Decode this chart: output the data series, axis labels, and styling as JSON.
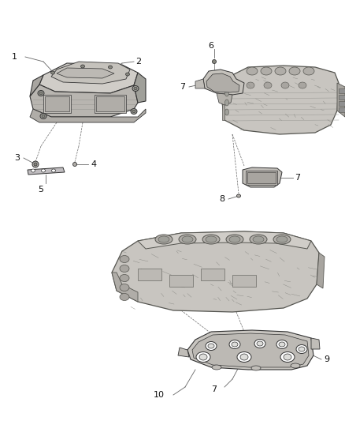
{
  "bg_color": "#ffffff",
  "fig_width": 4.38,
  "fig_height": 5.33,
  "dpi": 100,
  "line_color": "#444444",
  "text_color": "#111111",
  "font_size": 7.5,
  "part_fill": "#d8d5d0",
  "part_dark": "#b0ada8",
  "part_darker": "#909090",
  "part_edge": "#333333",
  "leader_color": "#666666",
  "label_font_size": 8
}
